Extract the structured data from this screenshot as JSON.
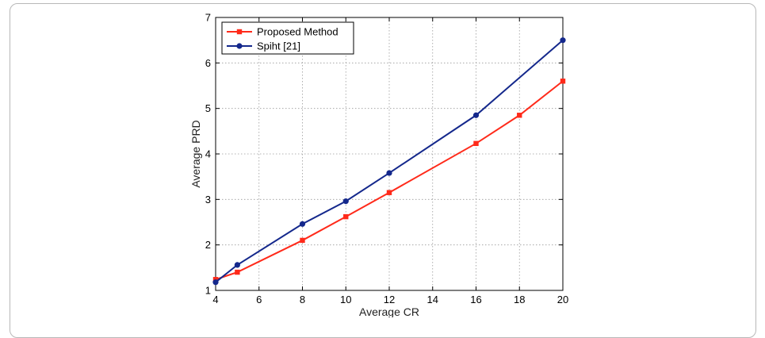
{
  "chart_data": {
    "type": "line",
    "title": "",
    "xlabel": "Average CR",
    "ylabel": "Average PRD",
    "xlim": [
      4,
      20
    ],
    "ylim": [
      1,
      7
    ],
    "xticks": [
      "4",
      "6",
      "8",
      "10",
      "12",
      "14",
      "16",
      "18",
      "20"
    ],
    "yticks": [
      "1",
      "2",
      "3",
      "4",
      "5",
      "6",
      "7"
    ],
    "grid": true,
    "legend_position": "top-left",
    "series": [
      {
        "name": "Proposed Method",
        "color": "#ff2a1a",
        "marker": "square",
        "x": [
          4,
          5,
          8,
          10,
          12,
          16,
          18,
          20
        ],
        "y": [
          1.24,
          1.4,
          2.1,
          2.62,
          3.15,
          4.23,
          4.85,
          5.6
        ]
      },
      {
        "name": "Spiht [21]",
        "color": "#14288c",
        "marker": "circle",
        "x": [
          4,
          5,
          8,
          10,
          12,
          16,
          20
        ],
        "y": [
          1.18,
          1.56,
          2.46,
          2.96,
          3.58,
          4.85,
          6.5
        ]
      }
    ]
  }
}
